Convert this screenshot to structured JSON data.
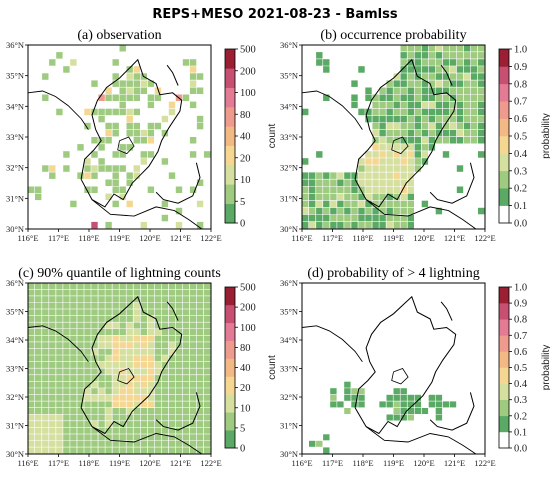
{
  "figure": {
    "title": "REPS+MESO 2021-08-23 - Bamlss"
  },
  "map": {
    "lon_labels": [
      "116°E",
      "117°E",
      "118°E",
      "119°E",
      "120°E",
      "121°E",
      "122°E"
    ],
    "lat_labels": [
      "30°N",
      "31°N",
      "32°N",
      "33°N",
      "34°N",
      "35°N",
      "36°N"
    ]
  },
  "colormaps": {
    "count": {
      "label": "count",
      "ticks": [
        "0",
        "5",
        "10",
        "20",
        "40",
        "80",
        "100",
        "200",
        "500"
      ],
      "colors": [
        "#5aa964",
        "#9fcb80",
        "#d5df9e",
        "#f6d792",
        "#f3b985",
        "#ee9a8c",
        "#e27b93",
        "#c64f72",
        "#9a1f33"
      ]
    },
    "probability": {
      "label": "probability",
      "ticks": [
        "0.0",
        "0.1",
        "0.2",
        "0.3",
        "0.4",
        "0.5",
        "0.6",
        "0.7",
        "0.8",
        "0.9",
        "1.0"
      ],
      "colors": [
        "#ffffff",
        "#5aa964",
        "#9fcb80",
        "#d5df9e",
        "#f6d792",
        "#f3b985",
        "#ee9a8c",
        "#e27b93",
        "#c64f72",
        "#9a1f33"
      ]
    }
  },
  "panels": [
    {
      "id": "a",
      "title": "(a) observation",
      "scale": "count"
    },
    {
      "id": "b",
      "title": "(b) occurrence probability",
      "scale": "probability"
    },
    {
      "id": "c",
      "title": "(c) 90% quantile of lightning counts",
      "scale": "count"
    },
    {
      "id": "d",
      "title": "(d) probability of > 4 lightning",
      "scale": "probability"
    }
  ]
}
